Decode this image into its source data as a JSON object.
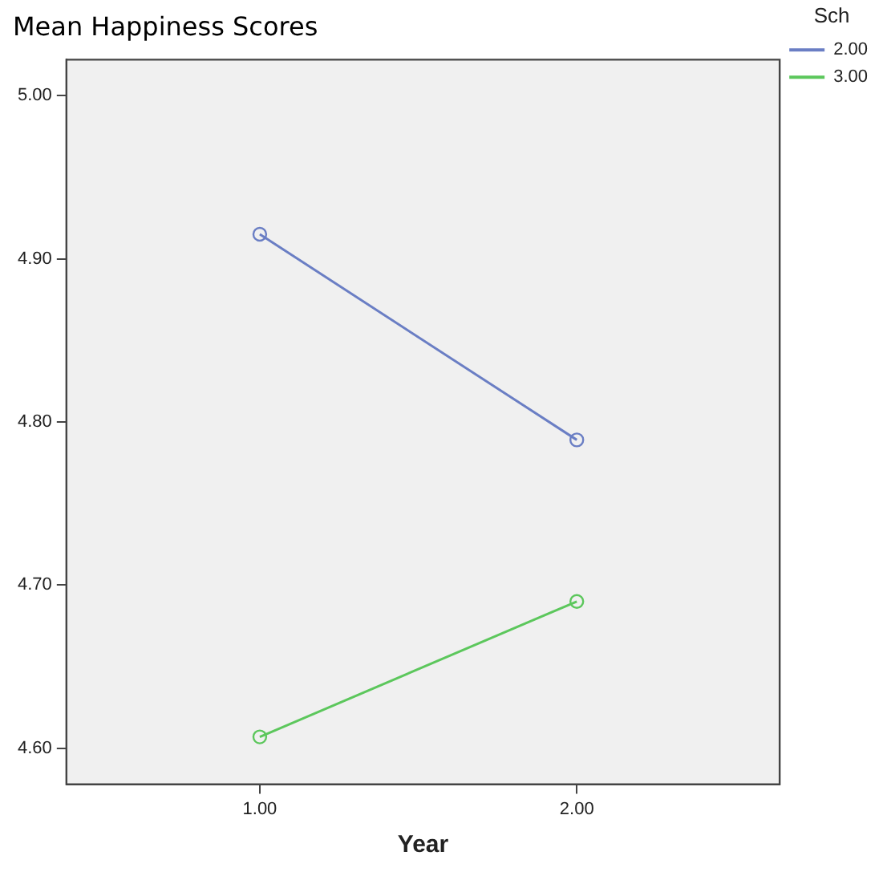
{
  "chart_data": {
    "type": "line",
    "title": "Mean Happiness Scores",
    "xlabel": "Year",
    "legend_title": "Sch",
    "x": [
      1,
      2
    ],
    "xlim": [
      0.39,
      2.64
    ],
    "xticks": [
      {
        "value": 1,
        "label": "1.00"
      },
      {
        "value": 2,
        "label": "2.00"
      }
    ],
    "ylim": [
      4.578,
      5.022
    ],
    "yticks": [
      {
        "value": 4.6,
        "label": "4.60"
      },
      {
        "value": 4.7,
        "label": "4.70"
      },
      {
        "value": 4.8,
        "label": "4.80"
      },
      {
        "value": 4.9,
        "label": "4.90"
      },
      {
        "value": 5.0,
        "label": "5.00"
      }
    ],
    "series": [
      {
        "name": "2.00",
        "color": "#6a7ec4",
        "values": [
          4.915,
          4.789
        ]
      },
      {
        "name": "3.00",
        "color": "#5cc75c",
        "values": [
          4.607,
          4.69
        ]
      }
    ],
    "marker": "circle",
    "line_style": "solid",
    "grid": false,
    "legend": "top right"
  }
}
